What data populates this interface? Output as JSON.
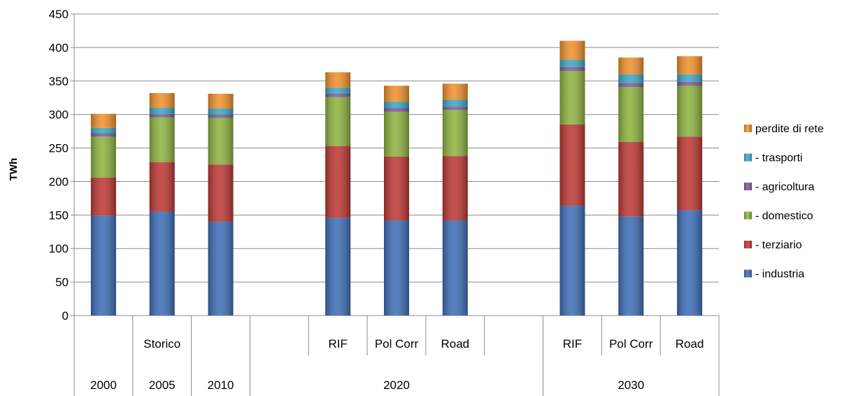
{
  "chart_data": {
    "type": "bar",
    "stacked": true,
    "title": "",
    "xlabel": "",
    "ylabel": "TWh",
    "ylim": [
      0,
      450
    ],
    "yticks": [
      0,
      50,
      100,
      150,
      200,
      250,
      300,
      350,
      400,
      450
    ],
    "grid": true,
    "legend_position": "right",
    "categories": [
      "",
      "Storico",
      "",
      "",
      "RIF",
      "Pol Corr",
      "Road",
      "",
      "RIF",
      "Pol Corr",
      "Road"
    ],
    "groups": [
      {
        "label": "2000",
        "span": [
          0,
          0
        ]
      },
      {
        "label": "2005",
        "span": [
          1,
          1
        ]
      },
      {
        "label": "2010",
        "span": [
          2,
          2
        ]
      },
      {
        "label": "2020",
        "span": [
          3,
          7
        ]
      },
      {
        "label": "2030",
        "span": [
          8,
          10
        ]
      }
    ],
    "series": [
      {
        "name": "- industria",
        "color": "#3f6fb8",
        "values": [
          149,
          155,
          140,
          null,
          146,
          142,
          142,
          null,
          164,
          148,
          157
        ]
      },
      {
        "name": "- terziario",
        "color": "#be3a35",
        "values": [
          57,
          74,
          85,
          null,
          107,
          95,
          96,
          null,
          121,
          111,
          110
        ]
      },
      {
        "name": "- domestico",
        "color": "#8fb341",
        "values": [
          61,
          67,
          70,
          null,
          73,
          67,
          69,
          null,
          80,
          82,
          76
        ]
      },
      {
        "name": "- agricoltura",
        "color": "#7c5fa0",
        "values": [
          5,
          5,
          5,
          null,
          5,
          6,
          5,
          null,
          6,
          6,
          6
        ]
      },
      {
        "name": "- trasporti",
        "color": "#3fa7c2",
        "values": [
          8,
          9,
          9,
          null,
          9,
          9,
          10,
          null,
          11,
          13,
          11
        ]
      },
      {
        "name": "perdite di rete",
        "color": "#f0922f",
        "values": [
          21,
          22,
          22,
          null,
          23,
          24,
          24,
          null,
          28,
          25,
          27
        ]
      }
    ]
  }
}
